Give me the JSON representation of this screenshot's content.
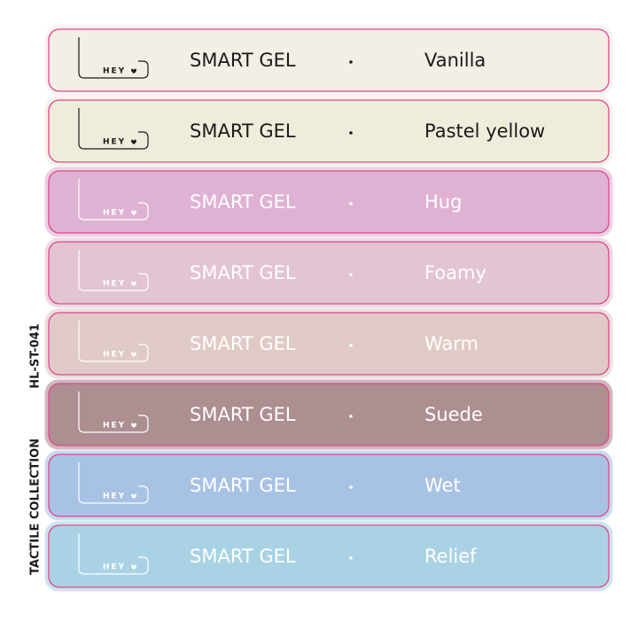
{
  "side_code": "HL-ST-041",
  "side_collection": "TACTILE COLLECTION",
  "rows": [
    {
      "logo": "HEY",
      "product": "SMART GEL",
      "name": "Vanilla",
      "color": "#f3eee6",
      "text_color": "#1a1a1a"
    },
    {
      "logo": "HEY",
      "product": "SMART GEL",
      "name": "Pastel yellow",
      "color": "#f0ecdc",
      "text_color": "#1a1a1a"
    },
    {
      "logo": "HEY",
      "product": "SMART GEL",
      "name": "Hug",
      "color": "#dfb2d3",
      "text_color": "#ffffff"
    },
    {
      "logo": "HEY",
      "product": "SMART GEL",
      "name": "Foamy",
      "color": "#e2c4d3",
      "text_color": "#ffffff"
    },
    {
      "logo": "HEY",
      "product": "SMART GEL",
      "name": "Warm",
      "color": "#e0cac7",
      "text_color": "#ffffff"
    },
    {
      "logo": "HEY",
      "product": "SMART GEL",
      "name": "Suede",
      "color": "#ad8e91",
      "text_color": "#ffffff"
    },
    {
      "logo": "HEY",
      "product": "SMART GEL",
      "name": "Wet",
      "color": "#a8c2e3",
      "text_color": "#ffffff"
    },
    {
      "logo": "HEY",
      "product": "SMART GEL",
      "name": "Relief",
      "color": "#a9d3e4",
      "text_color": "#ffffff"
    }
  ]
}
